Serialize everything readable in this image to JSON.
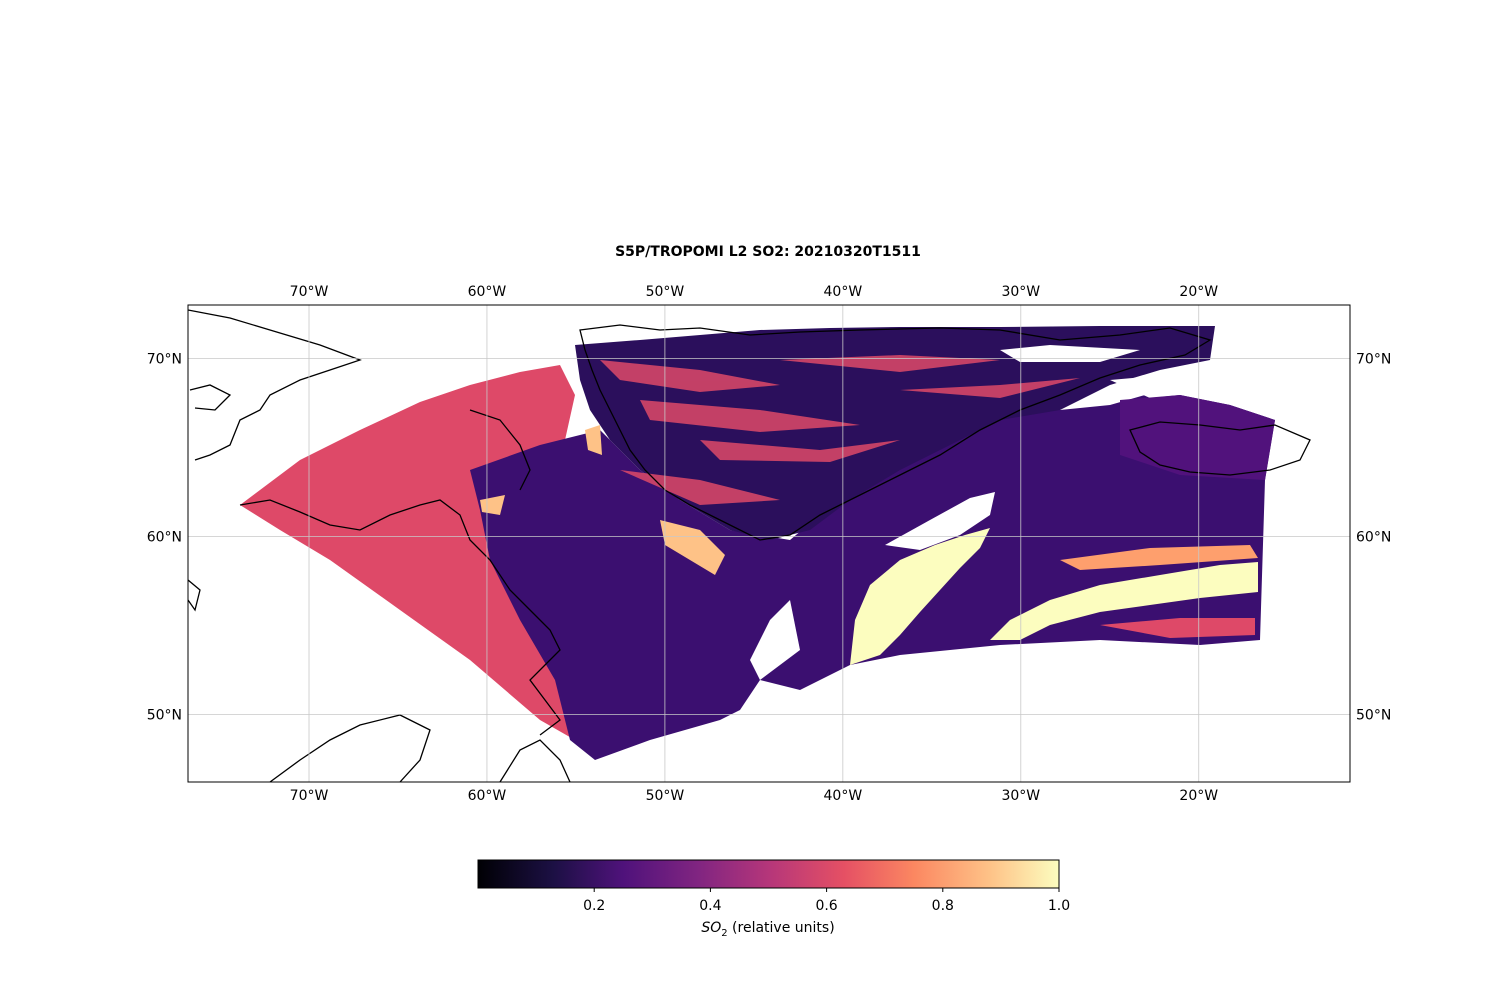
{
  "title": "S5P/TROPOMI L2 SO2: 20210320T1511",
  "map": {
    "lon_range": [
      -76.8,
      -11.5
    ],
    "lat_range": [
      46.2,
      73.0
    ],
    "lon_ticks": [
      {
        "value": -70,
        "label": "70°W"
      },
      {
        "value": -60,
        "label": "60°W"
      },
      {
        "value": -50,
        "label": "50°W"
      },
      {
        "value": -40,
        "label": "40°W"
      },
      {
        "value": -30,
        "label": "30°W"
      },
      {
        "value": -20,
        "label": "20°W"
      }
    ],
    "lat_ticks": [
      {
        "value": 70,
        "label": "70°N"
      },
      {
        "value": 60,
        "label": "60°N"
      },
      {
        "value": 50,
        "label": "50°N"
      }
    ],
    "gridlines": true,
    "field_colors": {
      "dark": "#2b0f5c",
      "purple": "#3b0f70",
      "violet": "#51127c",
      "magenta": "#8c2981",
      "pink": "#de4968",
      "orange": "#fe9f6d",
      "yellow": "#fcfdbf"
    }
  },
  "colorbar": {
    "colormap": "magma",
    "range": [
      0.0,
      1.0
    ],
    "ticks": [
      {
        "value": 0.2,
        "label": "0.2"
      },
      {
        "value": 0.4,
        "label": "0.4"
      },
      {
        "value": 0.6,
        "label": "0.6"
      },
      {
        "value": 0.8,
        "label": "0.8"
      },
      {
        "value": 1.0,
        "label": "1.0"
      }
    ],
    "label_main": "SO",
    "label_sub": "2",
    "label_rest": " (relative units)"
  }
}
